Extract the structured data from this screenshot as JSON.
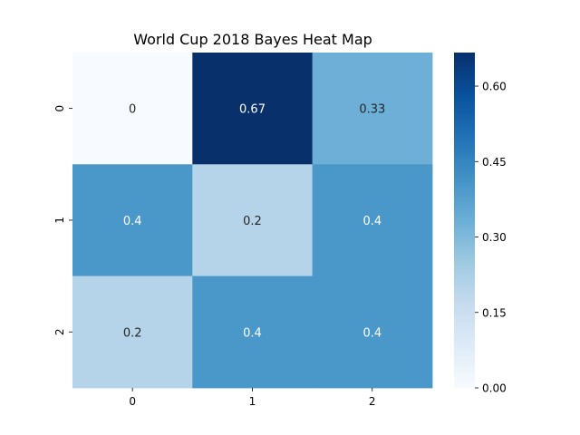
{
  "chart_data": {
    "type": "heatmap",
    "title": "World Cup 2018 Bayes Heat Map",
    "xlabel": "",
    "ylabel": "",
    "x_categories": [
      "0",
      "1",
      "2"
    ],
    "y_categories": [
      "0",
      "1",
      "2"
    ],
    "values": [
      [
        0,
        0.67,
        0.33
      ],
      [
        0.4,
        0.2,
        0.4
      ],
      [
        0.2,
        0.4,
        0.4
      ]
    ],
    "annotations": [
      [
        "0",
        "0.67",
        "0.33"
      ],
      [
        "0.4",
        "0.2",
        "0.4"
      ],
      [
        "0.2",
        "0.4",
        "0.4"
      ]
    ],
    "colormap": "Blues",
    "vmin": 0,
    "vmax": 0.6667,
    "colorbar_ticks": [
      0.0,
      0.15,
      0.3,
      0.45,
      0.6
    ],
    "colorbar_tick_labels": [
      "0.00",
      "0.15",
      "0.30",
      "0.45",
      "0.60"
    ]
  }
}
